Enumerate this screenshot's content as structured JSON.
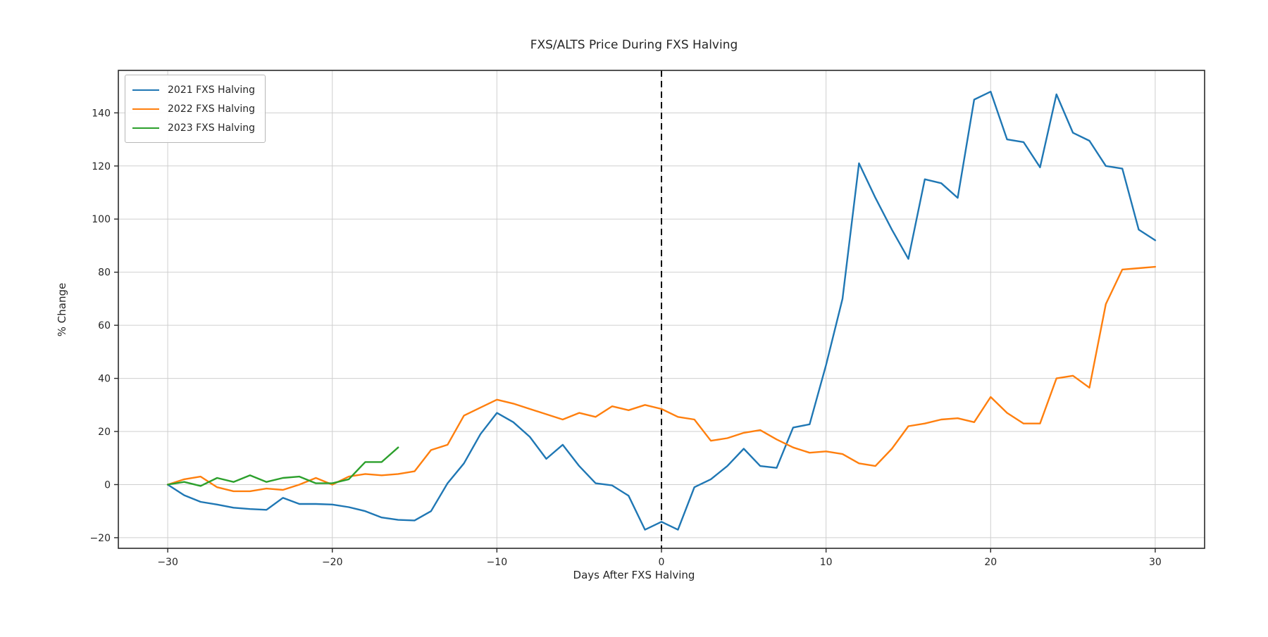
{
  "colors": {
    "background": "#ffffff",
    "grid": "#cfcfcf",
    "spine": "#2a2a2a",
    "tick_text": "#262626"
  },
  "chart_data": {
    "type": "line",
    "title": "FXS/ALTS Price During FXS Halving",
    "xlabel": "Days After FXS Halving",
    "ylabel": "% Change",
    "xlim": [
      -33,
      33
    ],
    "ylim": [
      -24,
      156
    ],
    "grid": true,
    "legend_position": "upper-left",
    "x_ticks": {
      "values": [
        -30,
        -20,
        -10,
        0,
        10,
        20,
        30
      ],
      "labels": [
        "−30",
        "−20",
        "−10",
        "0",
        "10",
        "20",
        "30"
      ]
    },
    "y_ticks": {
      "values": [
        -20,
        0,
        20,
        40,
        60,
        80,
        100,
        120,
        140
      ],
      "labels": [
        "−20",
        "0",
        "20",
        "40",
        "60",
        "80",
        "100",
        "120",
        "140"
      ]
    },
    "vline": {
      "x": 0,
      "style": "dashed",
      "color": "#000000"
    },
    "series": [
      {
        "name": "2021 FXS Halving",
        "color": "#1f77b4",
        "days": [
          -30,
          -29,
          -28,
          -27,
          -26,
          -25,
          -24,
          -23,
          -22,
          -21,
          -20,
          -19,
          -18,
          -17,
          -16,
          -15,
          -14,
          -13,
          -12,
          -11,
          -10,
          -9,
          -8,
          -7,
          -6,
          -5,
          -4,
          -3,
          -2,
          -1,
          0,
          1,
          2,
          3,
          4,
          5,
          6,
          7,
          8,
          9,
          10,
          11,
          12,
          13,
          14,
          15,
          16,
          17,
          18,
          19,
          20,
          21,
          22,
          23,
          24,
          25,
          26,
          27,
          28,
          29,
          30
        ],
        "values": [
          0,
          -4,
          -6.5,
          -7.5,
          -8.7,
          -9.2,
          -9.5,
          -5,
          -7.3,
          -7.3,
          -7.5,
          -8.5,
          -10,
          -12.4,
          -13.3,
          -13.5,
          -10,
          0.5,
          8,
          19,
          27,
          23.5,
          18,
          9.7,
          15,
          7,
          0.5,
          -0.3,
          -4.2,
          -17,
          -14,
          -17,
          -1,
          2,
          7,
          13.5,
          7,
          6.3,
          21.5,
          22.7,
          45,
          70,
          121,
          108,
          96,
          85,
          115,
          113.5,
          108,
          145,
          148,
          130,
          129,
          119.5,
          147,
          132.5,
          129.5,
          120,
          119,
          96,
          92
        ]
      },
      {
        "name": "2022 FXS Halving",
        "color": "#ff7f0e",
        "days": [
          -30,
          -29,
          -28,
          -27,
          -26,
          -25,
          -24,
          -23,
          -22,
          -21,
          -20,
          -19,
          -18,
          -17,
          -16,
          -15,
          -14,
          -13,
          -12,
          -11,
          -10,
          -9,
          -8,
          -7,
          -6,
          -5,
          -4,
          -3,
          -2,
          -1,
          0,
          1,
          2,
          3,
          4,
          5,
          6,
          7,
          8,
          9,
          10,
          11,
          12,
          13,
          14,
          15,
          16,
          17,
          18,
          19,
          20,
          21,
          22,
          23,
          24,
          25,
          26,
          27,
          28,
          29,
          30
        ],
        "values": [
          0,
          2,
          3,
          -1,
          -2.5,
          -2.5,
          -1.5,
          -2,
          0,
          2.5,
          0,
          3,
          4,
          3.5,
          4,
          5,
          13,
          15,
          26,
          29,
          32,
          30.5,
          28.5,
          26.5,
          24.5,
          27,
          25.5,
          29.5,
          28,
          30,
          28.5,
          25.5,
          24.5,
          16.5,
          17.5,
          19.5,
          20.5,
          17,
          14,
          12,
          12.5,
          11.5,
          8,
          7,
          13.5,
          22,
          23,
          24.5,
          25,
          23.5,
          33,
          27,
          23,
          23,
          40,
          41,
          36.5,
          68,
          81,
          81.5,
          82
        ]
      },
      {
        "name": "2023 FXS Halving",
        "color": "#2ca02c",
        "days": [
          -30,
          -29,
          -28,
          -27,
          -26,
          -25,
          -24,
          -23,
          -22,
          -21,
          -20,
          -19,
          -18,
          -17,
          -16
        ],
        "values": [
          0,
          1,
          -0.5,
          2.5,
          1,
          3.5,
          1,
          2.5,
          3,
          0.5,
          0.5,
          2,
          8.5,
          8.5,
          14
        ]
      }
    ]
  }
}
